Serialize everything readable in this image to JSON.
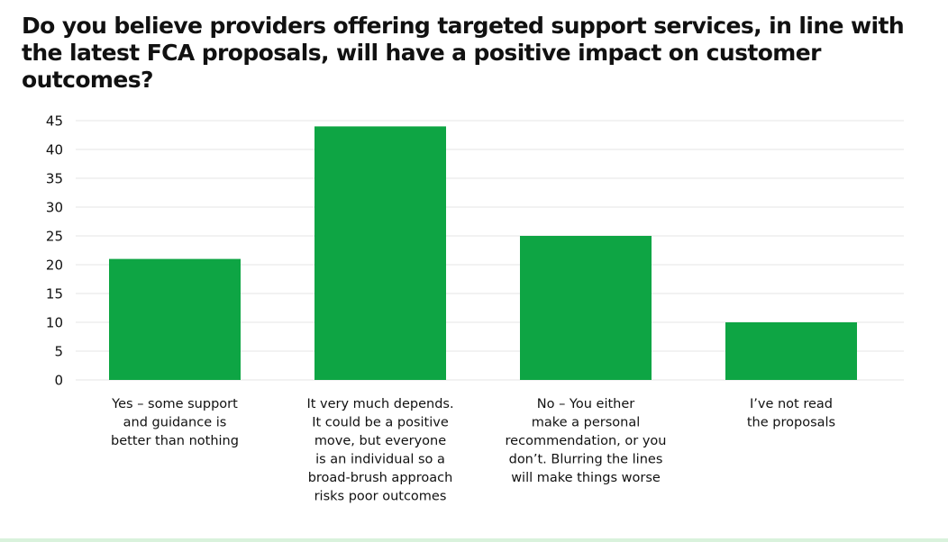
{
  "colors": {
    "bar": "#0ea544",
    "grid": "#e6e6e6",
    "text": "#111111",
    "footer_band": "#d9f2dc"
  },
  "chart_data": {
    "type": "bar",
    "title": "Do you believe providers offering targeted support services, in line with the latest FCA proposals, will have a positive impact on customer outcomes?",
    "xlabel": "",
    "ylabel": "",
    "ylim": [
      0,
      45
    ],
    "yticks": [
      0,
      5,
      10,
      15,
      20,
      25,
      30,
      35,
      40,
      45
    ],
    "grid": true,
    "legend": "none",
    "categories": [
      [
        "Yes – some support",
        "and guidance is",
        "better than nothing"
      ],
      [
        "It very much depends.",
        "It could be a positive",
        "move, but everyone",
        "is an individual so a",
        "broad-brush approach",
        "risks poor outcomes"
      ],
      [
        "No – You either",
        "make a personal",
        "recommendation, or you",
        "don’t. Blurring the lines",
        "will make things worse"
      ],
      [
        "I’ve not read",
        "the proposals"
      ]
    ],
    "values": [
      21,
      44,
      25,
      10
    ]
  }
}
